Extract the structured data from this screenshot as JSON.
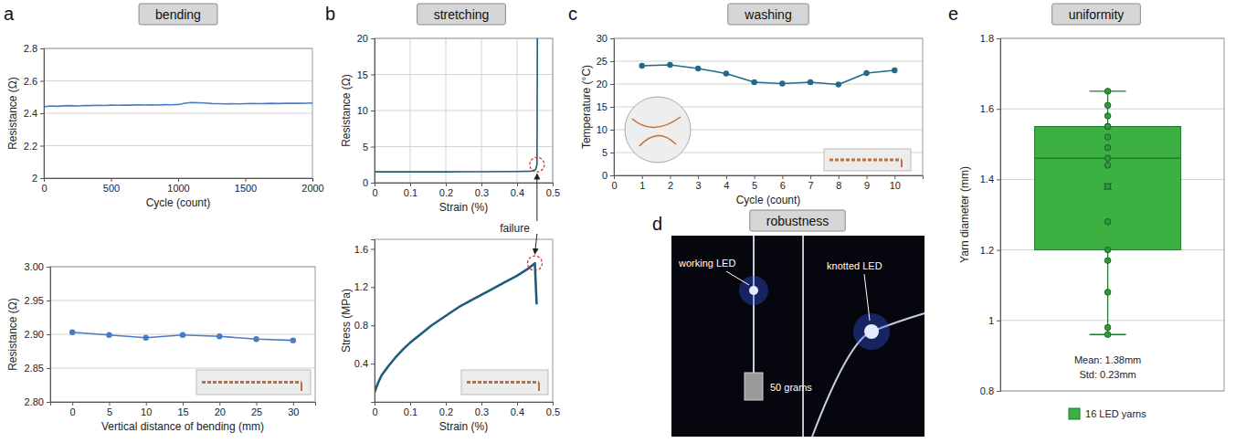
{
  "panels": [
    {
      "letter": "a",
      "title": "bending"
    },
    {
      "letter": "b",
      "title": "stretching"
    },
    {
      "letter": "c",
      "title": "washing"
    },
    {
      "letter": "d",
      "title": "robustness"
    },
    {
      "letter": "e",
      "title": "uniformity"
    }
  ],
  "chart_data": [
    {
      "type": "line",
      "xlabel": "Cycle (count)",
      "ylabel": "Resistance (Ω)",
      "x": [
        0,
        50,
        100,
        150,
        200,
        250,
        300,
        350,
        400,
        450,
        500,
        550,
        600,
        650,
        700,
        750,
        800,
        850,
        900,
        950,
        1000,
        1050,
        1100,
        1150,
        1200,
        1250,
        1300,
        1350,
        1400,
        1450,
        1500,
        1550,
        1600,
        1650,
        1700,
        1750,
        1800,
        1850,
        1900,
        1950,
        2000
      ],
      "values": [
        2.44,
        2.445,
        2.443,
        2.446,
        2.447,
        2.445,
        2.448,
        2.447,
        2.449,
        2.448,
        2.45,
        2.449,
        2.451,
        2.45,
        2.452,
        2.451,
        2.452,
        2.451,
        2.453,
        2.452,
        2.454,
        2.462,
        2.466,
        2.465,
        2.463,
        2.46,
        2.459,
        2.458,
        2.459,
        2.458,
        2.459,
        2.46,
        2.459,
        2.46,
        2.461,
        2.46,
        2.461,
        2.462,
        2.461,
        2.462,
        2.463
      ],
      "color": "#4a7cc6",
      "xlim": [
        0,
        2000
      ],
      "ylim": [
        2,
        2.8
      ],
      "xticks": [
        0,
        500,
        1000,
        1500,
        2000
      ],
      "yticks": [
        2,
        2.2,
        2.4,
        2.6,
        2.8
      ],
      "grid": "y"
    },
    {
      "type": "line",
      "xlabel": "Vertical distance of bending (mm)",
      "ylabel": "Resistance (Ω)",
      "x": [
        0,
        5,
        10,
        15,
        20,
        25,
        30
      ],
      "values": [
        2.903,
        2.899,
        2.895,
        2.899,
        2.897,
        2.893,
        2.891
      ],
      "color": "#4a7cc6",
      "marker": "circle",
      "xlim": [
        -3,
        33
      ],
      "ylim": [
        2.8,
        3.0
      ],
      "xticks": [
        0,
        5,
        10,
        15,
        20,
        25,
        30
      ],
      "yticks": [
        {
          "value": 2.8,
          "label": "2.80"
        },
        2.85,
        {
          "value": 2.9,
          "label": "2.90"
        },
        2.95,
        {
          "value": 3,
          "label": "3.00"
        }
      ],
      "grid": "y"
    },
    {
      "type": "line",
      "xlabel": "Strain (%)",
      "ylabel": "Resistance (Ω)",
      "x": [
        0,
        0.1,
        0.2,
        0.3,
        0.4,
        0.44,
        0.452,
        0.456,
        0.457
      ],
      "values": [
        1.5,
        1.5,
        1.5,
        1.52,
        1.55,
        1.6,
        1.8,
        2.5,
        20
      ],
      "color": "#1d5c7a",
      "xlim": [
        0,
        0.5
      ],
      "ylim": [
        0,
        20
      ],
      "xticks": [
        0,
        0.1,
        0.2,
        0.3,
        0.4,
        0.5
      ],
      "yticks": [
        0,
        5,
        10,
        15,
        20
      ],
      "grid": "xy",
      "annotations": [
        "failure"
      ]
    },
    {
      "type": "line",
      "xlabel": "Strain (%)",
      "ylabel": "Stress (MPa)",
      "x": [
        0,
        0.01,
        0.02,
        0.04,
        0.06,
        0.08,
        0.1,
        0.13,
        0.16,
        0.2,
        0.24,
        0.28,
        0.32,
        0.36,
        0.4,
        0.43,
        0.45,
        0.455
      ],
      "values": [
        0.1,
        0.2,
        0.28,
        0.38,
        0.47,
        0.55,
        0.62,
        0.71,
        0.8,
        0.9,
        1.0,
        1.08,
        1.16,
        1.24,
        1.32,
        1.39,
        1.45,
        1.02
      ],
      "color": "#1d5c7a",
      "xlim": [
        0,
        0.5
      ],
      "ylim": [
        0,
        1.7
      ],
      "xticks": [
        0,
        0.1,
        0.2,
        0.3,
        0.4,
        0.5
      ],
      "yticks": [
        0.4,
        0.8,
        1.2,
        1.6
      ]
    },
    {
      "type": "line",
      "xlabel": "Cycle (count)",
      "ylabel": "Temperature (°C)",
      "x": [
        1,
        2,
        3,
        4,
        5,
        6,
        7,
        8,
        9,
        10
      ],
      "values": [
        24,
        24.2,
        23.4,
        22.3,
        20.4,
        20.1,
        20.4,
        19.9,
        22.4,
        23
      ],
      "color": "#1f6b8a",
      "marker": "circle",
      "xlim": [
        0,
        11
      ],
      "ylim": [
        0,
        30
      ],
      "xticks": [
        0,
        1,
        2,
        3,
        4,
        5,
        6,
        7,
        8,
        9,
        10
      ],
      "yticks": [
        0,
        5,
        10,
        15,
        20,
        25,
        30
      ],
      "grid": "y"
    },
    {
      "type": "image",
      "annotations": [
        "working LED",
        "knotted LED",
        "50 grams"
      ]
    },
    {
      "type": "box",
      "ylabel": "Yarn diameter (mm)",
      "name": "16 LED yarns",
      "box": {
        "whisker_low": 0.96,
        "q1": 1.2,
        "median": 1.46,
        "q3": 1.55,
        "whisker_high": 1.65,
        "mean": 1.38
      },
      "points": [
        0.96,
        0.98,
        1.08,
        1.17,
        1.2,
        1.28,
        1.38,
        1.44,
        1.46,
        1.49,
        1.52,
        1.55,
        1.55,
        1.58,
        1.61,
        1.65
      ],
      "color": "#3cb043",
      "ylim": [
        0.8,
        1.8
      ],
      "yticks": [
        0.8,
        1,
        1.2,
        1.4,
        1.6,
        1.8
      ],
      "grid": "y",
      "legend": "bottom",
      "tick_labels": "y",
      "annotations": [
        "Mean: 1.38mm",
        "Std: 0.23mm"
      ]
    }
  ]
}
